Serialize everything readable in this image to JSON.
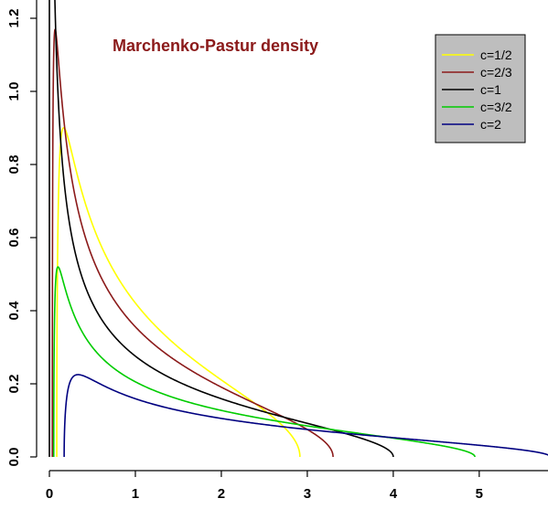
{
  "chart_data": {
    "type": "line",
    "title": "Marchenko-Pastur density",
    "xlabel": "",
    "ylabel": "",
    "xlim": [
      0,
      5.8
    ],
    "ylim": [
      0,
      1.2
    ],
    "x_ticks": [
      "0",
      "1",
      "2",
      "3",
      "4",
      "5"
    ],
    "y_ticks": [
      "0.0",
      "0.2",
      "0.4",
      "0.6",
      "0.8",
      "1.0",
      "1.2"
    ],
    "legend_position": "top-right",
    "grid": false,
    "series": [
      {
        "name": "c=1/2",
        "c": 0.5,
        "color": "#ffff00"
      },
      {
        "name": "c=2/3",
        "c": 0.6667,
        "color": "#8b1a1a"
      },
      {
        "name": "c=1",
        "c": 1,
        "color": "#000000"
      },
      {
        "name": "c=3/2",
        "c": 1.5,
        "color": "#00cc00"
      },
      {
        "name": "c=2",
        "c": 2,
        "color": "#000080"
      }
    ]
  },
  "colors": {
    "title": "#8b1a1a",
    "legend_background": "#bebebe"
  }
}
